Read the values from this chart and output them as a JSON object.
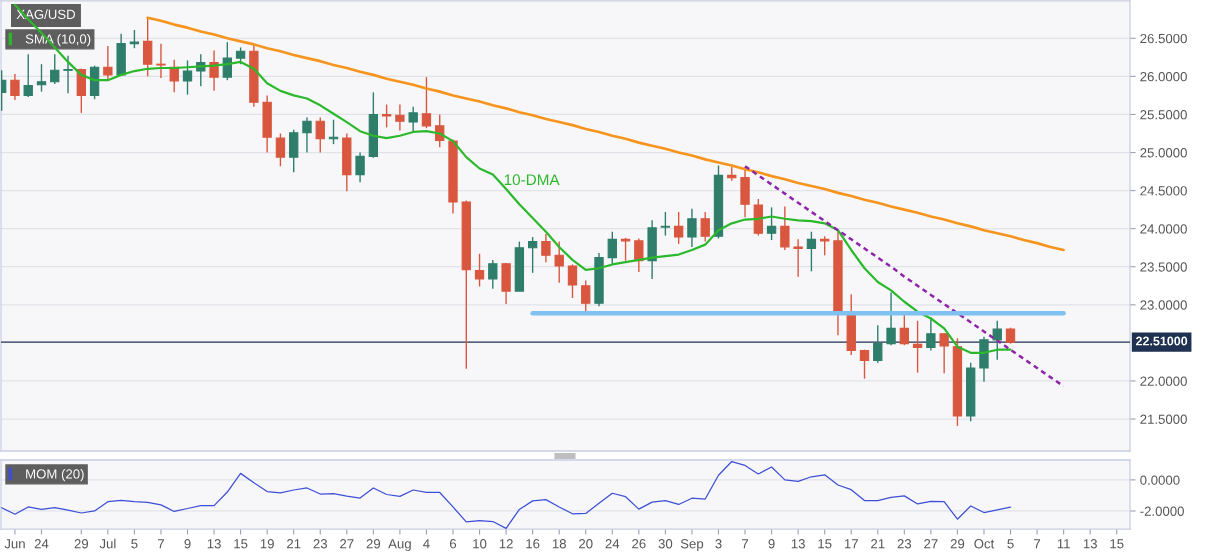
{
  "chart_data": [
    {
      "type": "candlestick",
      "title": "XAG/USD",
      "categories": [
        null,
        null,
        null,
        null,
        null,
        null,
        null,
        null,
        null,
        null,
        null,
        null,
        null,
        null,
        null,
        null,
        null,
        null,
        null,
        null,
        null,
        null,
        null,
        null,
        null,
        null,
        null,
        null,
        null,
        null,
        null,
        null,
        null,
        null,
        null,
        null,
        null,
        null,
        null,
        null,
        null,
        null,
        null,
        null,
        null,
        null,
        null,
        null,
        null,
        null,
        null,
        null,
        null,
        null,
        null,
        null,
        null,
        null,
        null,
        null,
        null,
        null,
        null,
        null,
        null,
        null,
        null,
        null,
        null,
        null,
        null,
        null,
        null,
        null,
        null,
        null,
        null,
        null,
        null,
        null,
        null,
        null,
        null,
        null,
        null
      ],
      "ohlc": [
        [
          25.79,
          26.08,
          25.55,
          25.95
        ],
        [
          25.95,
          26.03,
          25.69,
          25.75
        ],
        [
          25.75,
          26.29,
          25.73,
          25.88
        ],
        [
          25.89,
          26.16,
          25.8,
          25.93
        ],
        [
          25.93,
          26.29,
          25.9,
          26.08
        ],
        [
          26.08,
          26.27,
          25.78,
          26.09
        ],
        [
          26.09,
          26.1,
          25.52,
          25.75
        ],
        [
          25.75,
          26.14,
          25.7,
          26.12
        ],
        [
          26.12,
          26.4,
          25.95,
          26.02
        ],
        [
          26.02,
          26.56,
          26.02,
          26.43
        ],
        [
          26.43,
          26.61,
          26.37,
          26.45
        ],
        [
          26.46,
          26.77,
          26.0,
          26.16
        ],
        [
          26.16,
          26.43,
          25.98,
          26.15
        ],
        [
          26.12,
          26.22,
          25.79,
          25.94
        ],
        [
          25.94,
          26.21,
          25.76,
          26.07
        ],
        [
          26.07,
          26.29,
          25.87,
          26.18
        ],
        [
          26.18,
          26.34,
          25.81,
          25.99
        ],
        [
          25.99,
          26.45,
          25.95,
          26.24
        ],
        [
          26.24,
          26.38,
          26.16,
          26.33
        ],
        [
          26.33,
          26.43,
          25.6,
          25.66
        ],
        [
          25.66,
          25.75,
          25.0,
          25.2
        ],
        [
          25.19,
          25.25,
          24.82,
          24.94
        ],
        [
          24.94,
          25.3,
          24.74,
          25.26
        ],
        [
          25.26,
          25.46,
          25.0,
          25.41
        ],
        [
          25.41,
          25.46,
          25.0,
          25.18
        ],
        [
          25.18,
          25.43,
          25.11,
          25.2
        ],
        [
          25.19,
          25.25,
          24.49,
          24.71
        ],
        [
          24.71,
          25.0,
          24.61,
          24.95
        ],
        [
          24.95,
          25.79,
          24.93,
          25.5
        ],
        [
          25.5,
          25.63,
          25.33,
          25.48
        ],
        [
          25.49,
          25.63,
          25.29,
          25.41
        ],
        [
          25.4,
          25.6,
          25.27,
          25.52
        ],
        [
          25.51,
          25.99,
          25.32,
          25.35
        ],
        [
          25.35,
          25.5,
          25.07,
          25.16
        ],
        [
          25.15,
          25.17,
          24.2,
          24.35
        ],
        [
          24.35,
          24.37,
          22.16,
          23.46
        ],
        [
          23.45,
          23.67,
          23.24,
          23.34
        ],
        [
          23.34,
          23.59,
          23.21,
          23.54
        ],
        [
          23.54,
          23.55,
          23.01,
          23.18
        ],
        [
          23.18,
          23.83,
          23.18,
          23.75
        ],
        [
          23.75,
          23.89,
          23.42,
          23.83
        ],
        [
          23.83,
          23.93,
          23.56,
          23.65
        ],
        [
          23.65,
          23.83,
          23.29,
          23.51
        ],
        [
          23.51,
          23.53,
          23.09,
          23.26
        ],
        [
          23.25,
          23.32,
          22.88,
          23.02
        ],
        [
          23.02,
          23.68,
          22.98,
          23.62
        ],
        [
          23.62,
          23.96,
          23.54,
          23.86
        ],
        [
          23.86,
          23.88,
          23.58,
          23.84
        ],
        [
          23.84,
          23.87,
          23.43,
          23.58
        ],
        [
          23.58,
          24.11,
          23.34,
          24.01
        ],
        [
          24.02,
          24.22,
          23.91,
          24.03
        ],
        [
          24.03,
          24.22,
          23.8,
          23.89
        ],
        [
          23.89,
          24.26,
          23.76,
          24.13
        ],
        [
          24.13,
          24.22,
          23.83,
          23.9
        ],
        [
          23.9,
          24.83,
          23.87,
          24.7
        ],
        [
          24.7,
          24.81,
          24.63,
          24.67
        ],
        [
          24.67,
          24.81,
          24.15,
          24.32
        ],
        [
          24.31,
          24.39,
          23.91,
          23.94
        ],
        [
          23.94,
          24.28,
          23.85,
          24.03
        ],
        [
          24.03,
          24.29,
          23.72,
          23.76
        ],
        [
          23.76,
          23.86,
          23.37,
          23.74
        ],
        [
          23.74,
          23.96,
          23.44,
          23.86
        ],
        [
          23.86,
          23.9,
          23.65,
          23.84
        ],
        [
          23.84,
          23.98,
          22.6,
          22.91
        ],
        [
          22.91,
          23.14,
          22.34,
          22.4
        ],
        [
          22.4,
          22.41,
          22.03,
          22.27
        ],
        [
          22.27,
          22.73,
          22.24,
          22.49
        ],
        [
          22.49,
          23.16,
          22.47,
          22.69
        ],
        [
          22.69,
          22.89,
          22.47,
          22.49
        ],
        [
          22.48,
          22.79,
          22.11,
          22.44
        ],
        [
          22.44,
          22.84,
          22.4,
          22.62
        ],
        [
          22.62,
          22.63,
          22.1,
          22.46
        ],
        [
          22.45,
          22.56,
          21.41,
          21.54
        ],
        [
          21.54,
          22.24,
          21.47,
          22.17
        ],
        [
          22.17,
          22.58,
          21.99,
          22.54
        ],
        [
          22.54,
          22.79,
          22.28,
          22.68
        ],
        [
          22.68,
          22.7,
          22.49,
          22.51
        ],
        null,
        null,
        null,
        null,
        null,
        null,
        null,
        null
      ],
      "colors": [
        "#2f7d6b",
        "#d9573f",
        "#2f7d6b",
        "#2f7d6b",
        "#2f7d6b",
        "#2f7d6b",
        "#d9573f",
        "#2f7d6b",
        "#d9573f",
        "#2f7d6b",
        "#2f7d6b",
        "#d9573f",
        "#d9573f",
        "#d9573f",
        "#2f7d6b",
        "#2f7d6b",
        "#d9573f",
        "#2f7d6b",
        "#2f7d6b",
        "#d9573f",
        "#d9573f",
        "#d9573f",
        "#2f7d6b",
        "#2f7d6b",
        "#d9573f",
        "#2f7d6b",
        "#d9573f",
        "#2f7d6b",
        "#2f7d6b",
        "#d9573f",
        "#d9573f",
        "#2f7d6b",
        "#d9573f",
        "#d9573f",
        "#d9573f",
        "#d9573f",
        "#d9573f",
        "#2f7d6b",
        "#d9573f",
        "#2f7d6b",
        "#2f7d6b",
        "#d9573f",
        "#d9573f",
        "#d9573f",
        "#d9573f",
        "#2f7d6b",
        "#2f7d6b",
        "#d9573f",
        "#d9573f",
        "#2f7d6b",
        "#2f7d6b",
        "#d9573f",
        "#2f7d6b",
        "#d9573f",
        "#2f7d6b",
        "#d9573f",
        "#d9573f",
        "#d9573f",
        "#2f7d6b",
        "#d9573f",
        "#d9573f",
        "#2f7d6b",
        "#d9573f",
        "#d9573f",
        "#d9573f",
        "#d9573f",
        "#2f7d6b",
        "#2f7d6b",
        "#d9573f",
        "#d9573f",
        "#2f7d6b",
        "#d9573f",
        "#d9573f",
        "#2f7d6b",
        "#2f7d6b",
        "#2f7d6b",
        "#d9573f",
        null,
        null,
        null,
        null,
        null,
        null,
        null,
        null
      ],
      "series": [
        {
          "name": "SMA (10,0)",
          "type": "line",
          "color": "#2cb82c",
          "values": [
            null,
            26.94,
            26.75,
            26.57,
            26.38,
            26.19,
            26.02,
            25.95,
            25.95,
            26.02,
            26.07,
            26.1,
            26.11,
            26.11,
            26.12,
            26.13,
            26.14,
            26.16,
            26.19,
            26.1,
            25.91,
            25.81,
            25.75,
            25.71,
            25.62,
            25.51,
            25.4,
            25.28,
            25.22,
            25.19,
            25.22,
            25.27,
            25.28,
            25.25,
            25.15,
            24.94,
            24.79,
            24.71,
            24.52,
            24.32,
            24.14,
            23.96,
            23.76,
            23.59,
            23.46,
            23.48,
            23.53,
            23.56,
            23.59,
            23.62,
            23.64,
            23.66,
            23.72,
            23.79,
            23.98,
            24.07,
            24.12,
            24.13,
            24.16,
            24.13,
            24.11,
            24.1,
            24.07,
            23.98,
            23.72,
            23.48,
            23.3,
            23.19,
            23.04,
            22.91,
            22.82,
            22.69,
            22.45,
            22.37,
            22.37,
            22.41,
            22.41,
            null,
            null,
            null,
            null,
            null,
            null,
            null,
            null
          ]
        },
        {
          "type": "line",
          "color": "#f7941d",
          "values": [
            null,
            null,
            null,
            null,
            null,
            null,
            null,
            null,
            null,
            null,
            null,
            26.77,
            26.73,
            26.68,
            26.64,
            26.59,
            26.55,
            26.5,
            26.46,
            26.42,
            26.37,
            26.33,
            26.28,
            26.24,
            26.2,
            26.15,
            26.11,
            26.06,
            26.02,
            25.97,
            25.93,
            25.89,
            25.84,
            25.8,
            25.75,
            25.71,
            25.67,
            25.62,
            25.58,
            25.53,
            25.49,
            25.44,
            25.4,
            25.36,
            25.31,
            25.27,
            25.22,
            25.18,
            25.13,
            25.09,
            25.05,
            25.0,
            24.96,
            24.91,
            24.87,
            24.83,
            24.78,
            24.74,
            24.69,
            24.65,
            24.6,
            24.56,
            24.52,
            24.47,
            24.43,
            24.38,
            24.34,
            24.29,
            24.25,
            24.21,
            24.16,
            24.12,
            24.07,
            24.03,
            23.98,
            23.94,
            23.9,
            23.85,
            23.81,
            23.76,
            23.72,
            null,
            null,
            null,
            null
          ]
        },
        {
          "type": "line",
          "color": "#8e24aa",
          "line_style": "dashed",
          "values": [
            null,
            null,
            null,
            null,
            null,
            null,
            null,
            null,
            null,
            null,
            null,
            null,
            null,
            null,
            null,
            null,
            null,
            null,
            null,
            null,
            null,
            null,
            null,
            null,
            null,
            null,
            null,
            null,
            null,
            null,
            null,
            null,
            null,
            null,
            null,
            null,
            null,
            null,
            null,
            null,
            null,
            null,
            null,
            null,
            null,
            null,
            null,
            null,
            null,
            null,
            null,
            null,
            null,
            null,
            null,
            null,
            24.82,
            24.7,
            24.58,
            24.46,
            24.34,
            24.22,
            24.1,
            23.98,
            23.86,
            23.74,
            23.62,
            23.5,
            23.37,
            23.25,
            23.13,
            23.01,
            22.89,
            22.77,
            22.65,
            22.53,
            22.41,
            22.29,
            22.17,
            22.05,
            21.93,
            null,
            null,
            null,
            null
          ]
        },
        {
          "type": "line",
          "color": "#7fc1f0",
          "values": [
            null,
            null,
            null,
            null,
            null,
            null,
            null,
            null,
            null,
            null,
            null,
            null,
            null,
            null,
            null,
            null,
            null,
            null,
            null,
            null,
            null,
            null,
            null,
            null,
            null,
            null,
            null,
            null,
            null,
            null,
            null,
            null,
            null,
            null,
            null,
            null,
            null,
            null,
            null,
            null,
            22.89,
            22.89,
            22.89,
            22.89,
            22.89,
            22.89,
            22.89,
            22.89,
            22.89,
            22.89,
            22.89,
            22.89,
            22.89,
            22.89,
            22.89,
            22.89,
            22.89,
            22.89,
            22.89,
            22.89,
            22.89,
            22.89,
            22.89,
            22.89,
            22.89,
            22.89,
            22.89,
            22.89,
            22.89,
            22.89,
            22.89,
            22.89,
            22.89,
            22.89,
            22.89,
            22.89,
            22.89,
            22.89,
            22.89,
            22.89,
            22.89,
            null,
            null,
            null,
            null
          ]
        }
      ],
      "ref_lines": [
        {
          "axis": "y",
          "value": 22.51,
          "label": "22.51000",
          "color": "#1f3150"
        }
      ],
      "annotations": [
        "10-DMA"
      ],
      "ylim": [
        21.08,
        26.99
      ],
      "yticks": [
        {
          "value": 21.5,
          "label": "21.5000"
        },
        {
          "value": 22,
          "label": "22.0000"
        },
        {
          "value": 23,
          "label": "23.0000"
        },
        {
          "value": 23.5,
          "label": "23.5000"
        },
        {
          "value": 24,
          "label": "24.0000"
        },
        {
          "value": 24.5,
          "label": "24.5000"
        },
        {
          "value": 25,
          "label": "25.0000"
        },
        {
          "value": 25.5,
          "label": "25.5000"
        },
        {
          "value": 26,
          "label": "26.0000"
        },
        {
          "value": 26.5,
          "label": "26.5000"
        }
      ],
      "grid": "y",
      "legend": "top left",
      "tick_labels": "y"
    },
    {
      "type": "line",
      "categories": [
        null,
        "Jun",
        null,
        "24",
        null,
        null,
        "29",
        null,
        "Jul",
        null,
        "5",
        null,
        "7",
        null,
        "9",
        null,
        "13",
        null,
        "15",
        null,
        "19",
        null,
        "21",
        null,
        "23",
        null,
        "27",
        null,
        "29",
        null,
        "Aug",
        null,
        "4",
        null,
        "6",
        null,
        "10",
        null,
        "12",
        null,
        "16",
        null,
        "18",
        null,
        "20",
        null,
        "24",
        null,
        "26",
        null,
        "30",
        null,
        "Sep",
        null,
        "3",
        null,
        "7",
        null,
        "9",
        null,
        "13",
        null,
        "15",
        null,
        "17",
        null,
        "21",
        null,
        "23",
        null,
        "27",
        null,
        "29",
        null,
        "Oct",
        null,
        "5",
        null,
        "7",
        null,
        "11",
        null,
        "13",
        null,
        "15"
      ],
      "series": [
        {
          "name": "MOM (20)",
          "color": "#3d4fd6",
          "values": [
            -1.79,
            -2.21,
            -1.74,
            -1.9,
            -1.79,
            -1.95,
            -2.13,
            -2.0,
            -1.4,
            -1.32,
            -1.4,
            -1.45,
            -1.61,
            -2.03,
            -1.84,
            -1.66,
            -1.66,
            -0.78,
            0.42,
            -0.18,
            -0.75,
            -0.83,
            -0.65,
            -0.52,
            -0.91,
            -0.88,
            -1.04,
            -1.17,
            -0.52,
            -0.94,
            -1.06,
            -0.65,
            -0.81,
            -0.81,
            -1.74,
            -2.7,
            -2.62,
            -2.68,
            -3.12,
            -1.9,
            -1.35,
            -1.27,
            -1.74,
            -2.18,
            -2.16,
            -1.5,
            -0.86,
            -1.08,
            -1.88,
            -1.43,
            -1.33,
            -1.58,
            -1.18,
            -1.23,
            0.3,
            1.18,
            0.93,
            0.38,
            0.83,
            0.0,
            -0.1,
            0.2,
            0.33,
            -0.33,
            -0.63,
            -1.33,
            -1.33,
            -1.13,
            -1.03,
            -1.55,
            -1.38,
            -1.4,
            -2.53,
            -1.68,
            -2.1,
            -1.93,
            -1.75,
            null,
            null,
            null,
            null,
            null,
            null,
            null,
            null
          ]
        }
      ],
      "ylim": [
        -3.16,
        1.28
      ],
      "yticks": [
        {
          "value": -2,
          "label": "-2.0000"
        },
        {
          "value": 0,
          "label": "0.0000"
        }
      ],
      "grid": "y",
      "legend": "top left"
    }
  ]
}
